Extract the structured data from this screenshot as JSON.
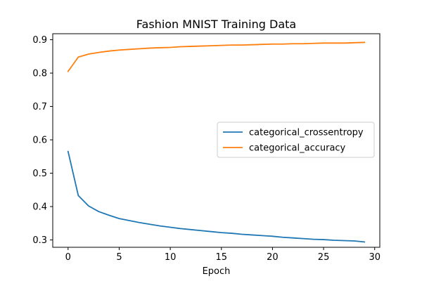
{
  "chart_data": {
    "type": "line",
    "title": "Fashion MNIST Training Data",
    "xlabel": "Epoch",
    "ylabel": "",
    "xlim": [
      -1.5,
      30.5
    ],
    "ylim": [
      0.278,
      0.918
    ],
    "xticks": [
      0,
      5,
      10,
      15,
      20,
      25,
      30
    ],
    "yticks": [
      0.3,
      0.4,
      0.5,
      0.6,
      0.7,
      0.8,
      0.9
    ],
    "grid": false,
    "legend": "center-right",
    "x": [
      0,
      1,
      2,
      3,
      4,
      5,
      6,
      7,
      8,
      9,
      10,
      11,
      12,
      13,
      14,
      15,
      16,
      17,
      18,
      19,
      20,
      21,
      22,
      23,
      24,
      25,
      26,
      27,
      28,
      29
    ],
    "series": [
      {
        "name": "categorical_crossentropy",
        "color": "#1f77b4",
        "values": [
          0.565,
          0.433,
          0.402,
          0.385,
          0.374,
          0.364,
          0.358,
          0.352,
          0.347,
          0.342,
          0.338,
          0.334,
          0.331,
          0.328,
          0.325,
          0.322,
          0.32,
          0.317,
          0.315,
          0.313,
          0.311,
          0.308,
          0.306,
          0.304,
          0.302,
          0.301,
          0.299,
          0.298,
          0.297,
          0.294
        ]
      },
      {
        "name": "categorical_accuracy",
        "color": "#ff7f0e",
        "values": [
          0.805,
          0.848,
          0.857,
          0.862,
          0.866,
          0.869,
          0.871,
          0.873,
          0.875,
          0.876,
          0.877,
          0.879,
          0.88,
          0.881,
          0.882,
          0.883,
          0.884,
          0.884,
          0.885,
          0.886,
          0.887,
          0.887,
          0.888,
          0.888,
          0.889,
          0.89,
          0.89,
          0.89,
          0.891,
          0.892
        ]
      }
    ]
  }
}
